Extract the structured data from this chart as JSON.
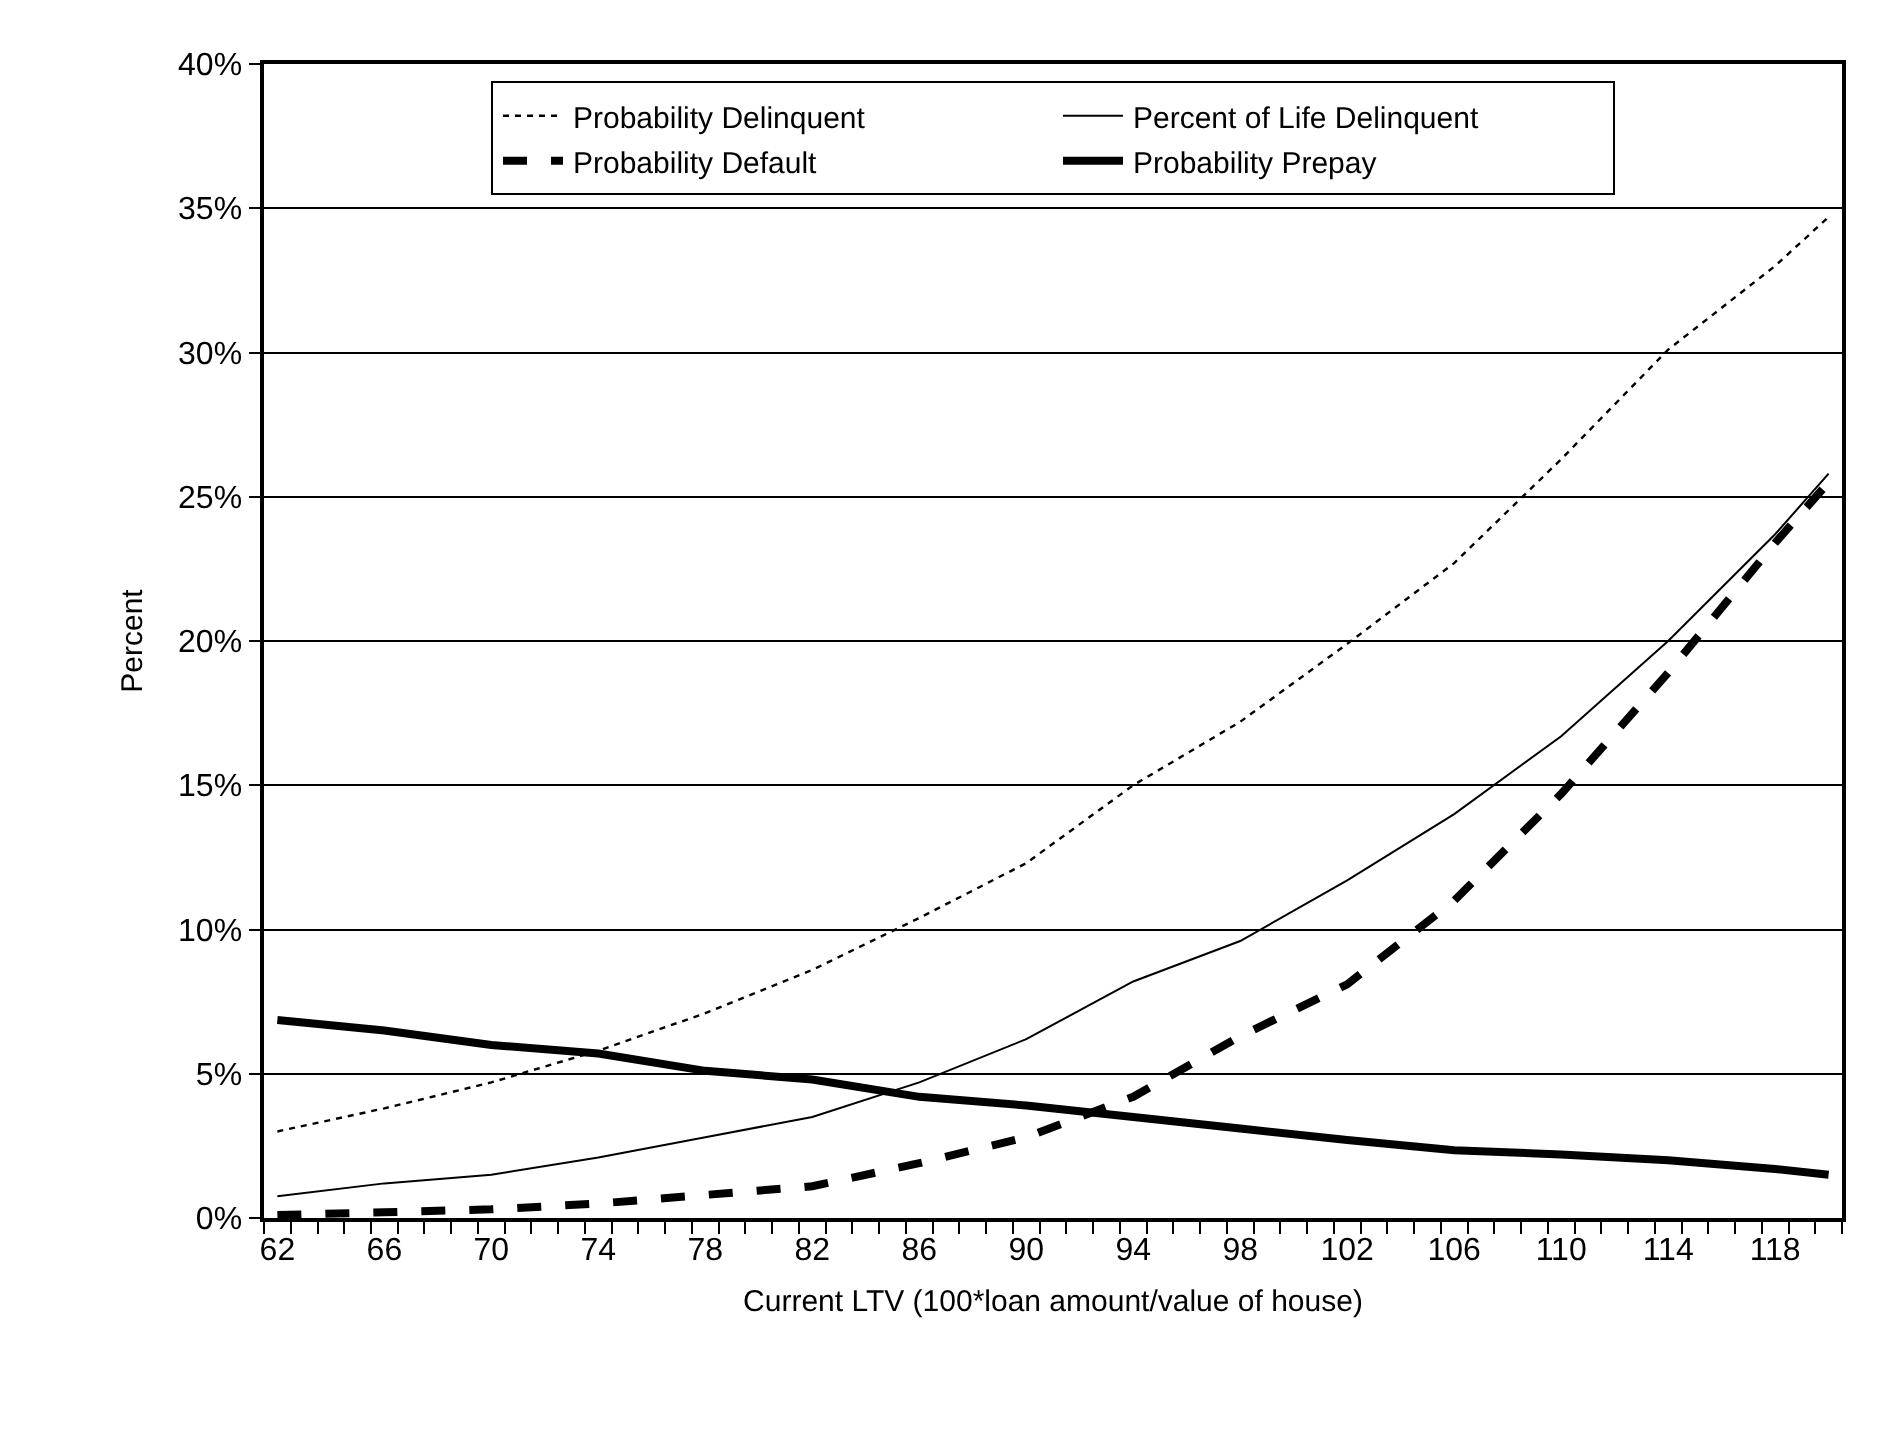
{
  "chart_data": {
    "type": "line",
    "xlabel": "Current LTV (100*loan amount/value of house)",
    "ylabel": "Percent",
    "x": [
      62,
      66,
      70,
      74,
      78,
      82,
      86,
      90,
      94,
      98,
      102,
      106,
      110,
      114,
      118,
      120
    ],
    "xlim": [
      61.5,
      120.5
    ],
    "xticks": [
      62,
      66,
      70,
      74,
      78,
      82,
      86,
      90,
      94,
      98,
      102,
      106,
      110,
      114,
      118
    ],
    "ylim": [
      0,
      40
    ],
    "yticks": [
      {
        "value": 0,
        "label": "0%"
      },
      {
        "value": 5,
        "label": "5%"
      },
      {
        "value": 10,
        "label": "10%"
      },
      {
        "value": 15,
        "label": "15%"
      },
      {
        "value": 20,
        "label": "20%"
      },
      {
        "value": 25,
        "label": "25%"
      },
      {
        "value": 30,
        "label": "30%"
      },
      {
        "value": 35,
        "label": "35%"
      },
      {
        "value": 40,
        "label": "40%"
      }
    ],
    "grid": "y",
    "legend": "top",
    "marker": "none",
    "series": [
      {
        "name": "Probability Delinquent",
        "color": "#000000",
        "line_style": "dotted",
        "values": [
          3.0,
          3.8,
          4.7,
          5.8,
          7.1,
          8.6,
          10.4,
          12.3,
          15.0,
          17.2,
          19.9,
          22.7,
          26.3,
          30.1,
          33.0,
          34.7
        ]
      },
      {
        "name": "Percent of Life Delinquent",
        "color": "#000000",
        "line_style": "solid",
        "values": [
          0.75,
          1.2,
          1.5,
          2.1,
          2.8,
          3.5,
          4.7,
          6.2,
          8.2,
          9.6,
          11.7,
          14.0,
          16.7,
          20.0,
          23.7,
          25.8
        ]
      },
      {
        "name": "Probability Default",
        "color": "#000000",
        "line_style": "dashed",
        "values": [
          0.1,
          0.2,
          0.3,
          0.5,
          0.8,
          1.1,
          1.9,
          2.8,
          4.2,
          6.3,
          8.1,
          11.0,
          14.7,
          18.9,
          23.4,
          25.5
        ]
      },
      {
        "name": "Probability Prepay",
        "color": "#000000",
        "line_style": "solid",
        "values": [
          6.86,
          6.5,
          6.0,
          5.7,
          5.1,
          4.8,
          4.2,
          3.9,
          3.5,
          3.1,
          2.7,
          2.35,
          2.2,
          2.0,
          1.7,
          1.5
        ]
      }
    ]
  }
}
